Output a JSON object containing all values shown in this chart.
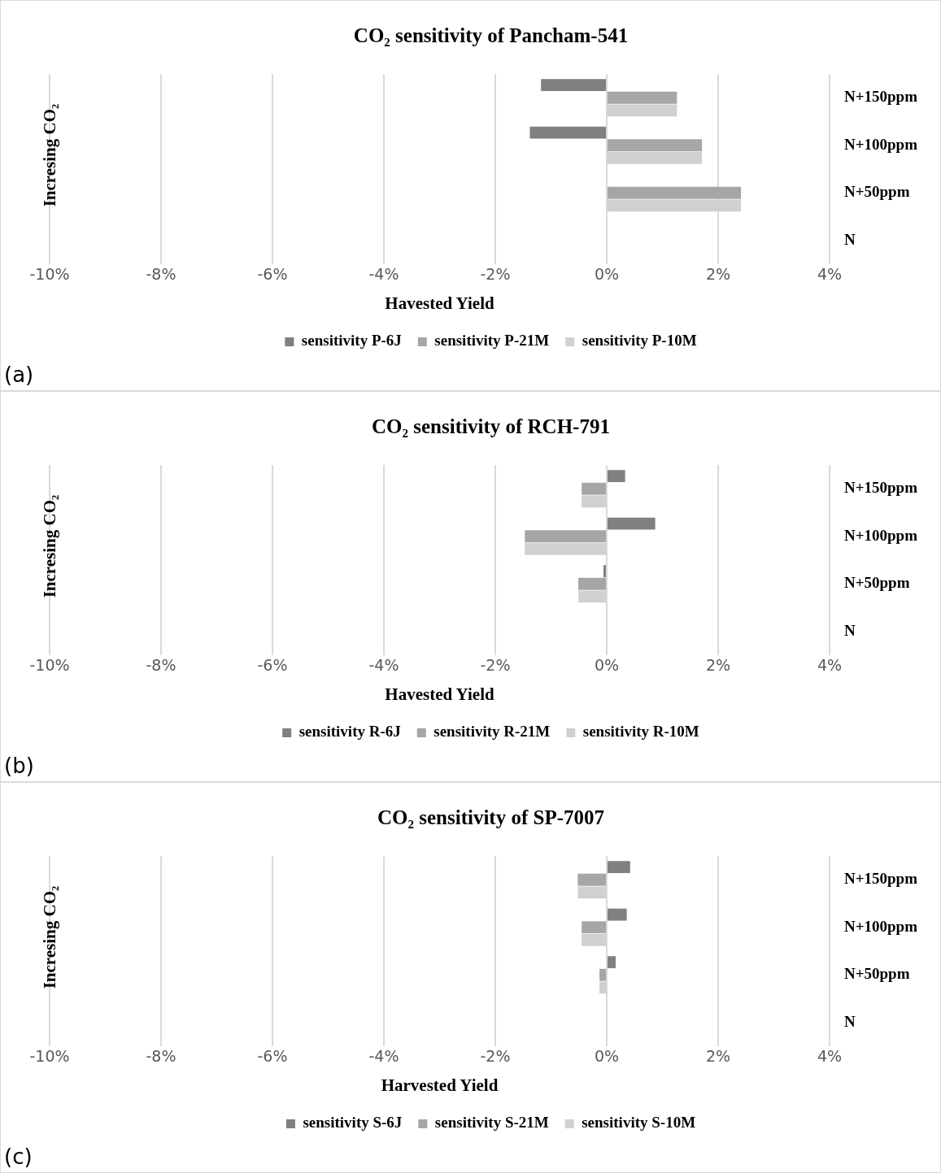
{
  "chart_data": [
    {
      "type": "bar",
      "orientation": "horizontal",
      "title": "CO₂ sensitivity of Pancham-541",
      "xlabel": "Havested Yield",
      "ylabel": "Incresing CO₂",
      "categories": [
        "N+150ppm",
        "N+100ppm",
        "N+50ppm",
        "N"
      ],
      "series": [
        {
          "name": "sensitivity P-6J",
          "color": "#808080",
          "values": [
            -1.18,
            -1.38,
            null,
            0
          ]
        },
        {
          "name": "sensitivity P-21M",
          "color": "#a6a6a6",
          "values": [
            1.26,
            1.71,
            2.41,
            0
          ]
        },
        {
          "name": "sensitivity P-10M",
          "color": "#d0d0d0",
          "values": [
            1.26,
            1.71,
            2.41,
            0
          ]
        }
      ],
      "xlim": [
        -10,
        4
      ],
      "xticks": [
        {
          "value": -10,
          "label": "-10%"
        },
        {
          "value": -8,
          "label": "-8%"
        },
        {
          "value": -6,
          "label": "-6%"
        },
        {
          "value": -4,
          "label": "-4%"
        },
        {
          "value": -2,
          "label": "-2%"
        },
        {
          "value": 0,
          "label": "0%"
        },
        {
          "value": 2,
          "label": "2%"
        },
        {
          "value": 4,
          "label": "4%"
        }
      ],
      "grid": "x",
      "legend": "bottom",
      "annotations": [
        "(a)"
      ]
    },
    {
      "type": "bar",
      "orientation": "horizontal",
      "title": "CO₂ sensitivity of RCH-791",
      "xlabel": "Havested Yield",
      "ylabel": "Incresing CO₂",
      "categories": [
        "N+150ppm",
        "N+100ppm",
        "N+50ppm",
        "N"
      ],
      "series": [
        {
          "name": "sensitivity R-6J",
          "color": "#808080",
          "values": [
            0.33,
            0.87,
            -0.06,
            0
          ]
        },
        {
          "name": "sensitivity R-21M",
          "color": "#a6a6a6",
          "values": [
            -0.45,
            -1.47,
            -0.51,
            0
          ]
        },
        {
          "name": "sensitivity R-10M",
          "color": "#d0d0d0",
          "values": [
            -0.45,
            -1.47,
            -0.51,
            0
          ]
        }
      ],
      "xlim": [
        -10,
        4
      ],
      "xticks": [
        {
          "value": -10,
          "label": "-10%"
        },
        {
          "value": -8,
          "label": "-8%"
        },
        {
          "value": -6,
          "label": "-6%"
        },
        {
          "value": -4,
          "label": "-4%"
        },
        {
          "value": -2,
          "label": "-2%"
        },
        {
          "value": 0,
          "label": "0%"
        },
        {
          "value": 2,
          "label": "2%"
        },
        {
          "value": 4,
          "label": "4%"
        }
      ],
      "grid": "x",
      "legend": "bottom",
      "annotations": [
        "(b)"
      ]
    },
    {
      "type": "bar",
      "orientation": "horizontal",
      "title": "CO₂ sensitivity of SP-7007",
      "xlabel": "Harvested Yield",
      "ylabel": "Incresing CO₂",
      "categories": [
        "N+150ppm",
        "N+100ppm",
        "N+50ppm",
        "N"
      ],
      "series": [
        {
          "name": "sensitivity S-6J",
          "color": "#808080",
          "values": [
            0.42,
            0.36,
            0.16,
            0
          ]
        },
        {
          "name": "sensitivity S-21M",
          "color": "#a6a6a6",
          "values": [
            -0.52,
            -0.45,
            -0.13,
            0
          ]
        },
        {
          "name": "sensitivity S-10M",
          "color": "#d0d0d0",
          "values": [
            -0.52,
            -0.45,
            -0.13,
            0
          ]
        }
      ],
      "xlim": [
        -10,
        4
      ],
      "xticks": [
        {
          "value": -10,
          "label": "-10%"
        },
        {
          "value": -8,
          "label": "-8%"
        },
        {
          "value": -6,
          "label": "-6%"
        },
        {
          "value": -4,
          "label": "-4%"
        },
        {
          "value": -2,
          "label": "-2%"
        },
        {
          "value": 0,
          "label": "0%"
        },
        {
          "value": 2,
          "label": "2%"
        },
        {
          "value": 4,
          "label": "4%"
        }
      ],
      "grid": "x",
      "legend": "bottom",
      "annotations": [
        "(c)"
      ]
    }
  ]
}
